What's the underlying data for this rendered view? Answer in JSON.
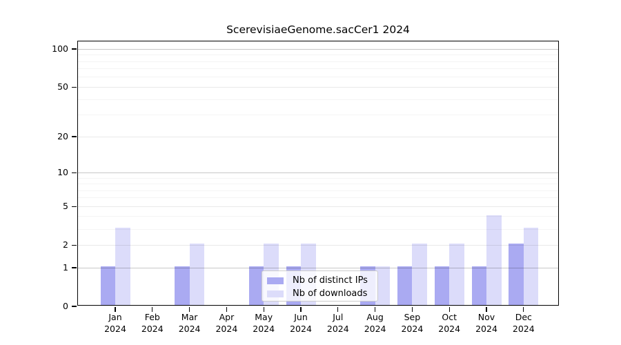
{
  "chart_data": {
    "type": "bar",
    "title": "ScerevisiaeGenome.sacCer1 2024",
    "categories": [
      "Jan",
      "Feb",
      "Mar",
      "Apr",
      "May",
      "Jun",
      "Jul",
      "Aug",
      "Sep",
      "Oct",
      "Nov",
      "Dec"
    ],
    "x_year": "2024",
    "series": [
      {
        "name": "Nb of distinct IPs",
        "color": "#aaaaf2",
        "values": [
          1,
          0,
          1,
          0,
          1,
          1,
          0,
          1,
          1,
          1,
          1,
          2
        ]
      },
      {
        "name": "Nb of downloads",
        "color": "#dcdcfa",
        "values": [
          3,
          0,
          2,
          0,
          2,
          2,
          0,
          1,
          2,
          2,
          4,
          3
        ]
      }
    ],
    "yscale": "log1p",
    "ylim": [
      0,
      115
    ],
    "y_tick_labels": [
      0,
      1,
      2,
      5,
      10,
      20,
      50,
      100
    ],
    "y_grid_decade": [
      1,
      10,
      100
    ],
    "y_grid_labeled": [
      2,
      5,
      20,
      50
    ],
    "y_grid_minor": [
      3,
      4,
      6,
      7,
      8,
      9,
      30,
      40,
      60,
      70,
      80,
      90
    ],
    "grid": true,
    "legend_position": "lower center",
    "xlabel": "",
    "ylabel": ""
  },
  "legend": {
    "items": [
      {
        "label": "Nb of distinct IPs"
      },
      {
        "label": "Nb of downloads"
      }
    ]
  }
}
